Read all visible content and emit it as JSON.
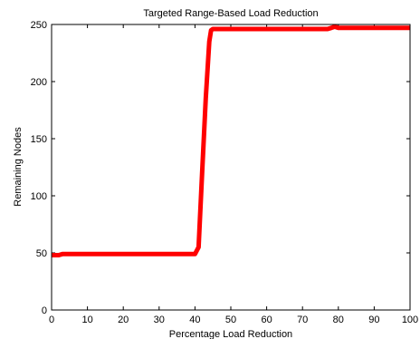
{
  "chart_data": {
    "type": "line",
    "title": "Targeted Range-Based Load Reduction",
    "xlabel": "Percentage Load Reduction",
    "ylabel": "Remaining Nodes",
    "xlim": [
      0,
      100
    ],
    "ylim": [
      0,
      250
    ],
    "xticks": [
      0,
      10,
      20,
      30,
      40,
      50,
      60,
      70,
      80,
      90,
      100
    ],
    "yticks": [
      0,
      50,
      100,
      150,
      200,
      250
    ],
    "grid": false,
    "series": [
      {
        "color": "#ff0000",
        "x": [
          0,
          2,
          3,
          10,
          20,
          30,
          40,
          41,
          42,
          43,
          44,
          44.5,
          45,
          50,
          60,
          70,
          77,
          78,
          79,
          80,
          90,
          100
        ],
        "y": [
          48,
          48,
          49,
          49,
          49,
          49,
          49,
          55,
          120,
          185,
          235,
          245,
          246,
          246,
          246,
          246,
          246,
          247,
          248,
          247,
          247,
          247
        ]
      }
    ]
  }
}
